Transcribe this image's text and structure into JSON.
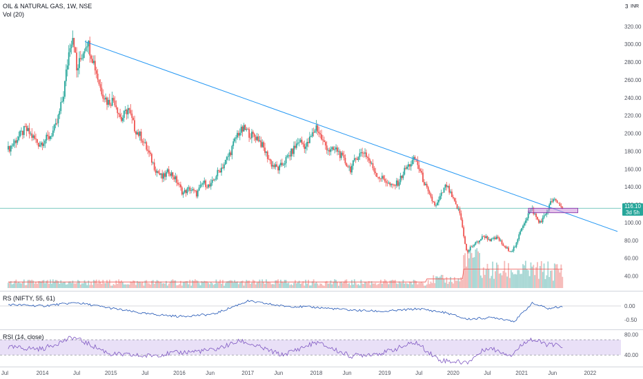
{
  "header": {
    "symbol": "OIL & NATURAL GAS, 1W, NSE",
    "vol_label": "Vol (20)",
    "currency_glyph": "3",
    "currency": "INR"
  },
  "price_badge": {
    "price": "116.10",
    "countdown": "3d 5h"
  },
  "colors": {
    "up": "#26a69a",
    "down": "#ef5350",
    "trendline": "#2196f3",
    "rs_line": "#1e53b4",
    "rsi_line": "#7e57c2",
    "rsi_band": "#e9e0f7",
    "box_fill": "#ce93d8",
    "box_stroke": "#7b1fa2",
    "price_line": "#26a69a",
    "vol_ma": "#ef5350"
  },
  "indicators": {
    "rs_label": "RS (NIFTY, 55, 61)",
    "rsi_label": "RSI (14, close)"
  },
  "chart_data": {
    "type": "candlestick",
    "title": "OIL & NATURAL GAS, 1W, NSE",
    "x_ticks": [
      "Jul",
      "2014",
      "Jul",
      "2015",
      "Jul",
      "2016",
      "Jun",
      "2017",
      "Jun",
      "2018",
      "Jun",
      "2019",
      "Jul",
      "2020",
      "Jul",
      "2021",
      "Jun",
      "2022"
    ],
    "price_axis": {
      "ticks": [
        "320.00",
        "300.00",
        "280.00",
        "260.00",
        "240.00",
        "220.00",
        "200.00",
        "180.00",
        "160.00",
        "140.00",
        "120.00",
        "100.00",
        "80.00",
        "60.00",
        "40.00"
      ],
      "ylim": [
        25,
        328
      ]
    },
    "last_price": 116.1,
    "price_path": [
      {
        "t": 2013.5,
        "p": 182
      },
      {
        "t": 2013.75,
        "p": 205
      },
      {
        "t": 2013.95,
        "p": 188
      },
      {
        "t": 2014.1,
        "p": 196
      },
      {
        "t": 2014.2,
        "p": 208
      },
      {
        "t": 2014.3,
        "p": 240
      },
      {
        "t": 2014.4,
        "p": 300
      },
      {
        "t": 2014.45,
        "p": 312
      },
      {
        "t": 2014.5,
        "p": 270
      },
      {
        "t": 2014.55,
        "p": 282
      },
      {
        "t": 2014.65,
        "p": 305
      },
      {
        "t": 2014.75,
        "p": 280
      },
      {
        "t": 2014.85,
        "p": 250
      },
      {
        "t": 2014.95,
        "p": 235
      },
      {
        "t": 2015.05,
        "p": 238
      },
      {
        "t": 2015.15,
        "p": 215
      },
      {
        "t": 2015.25,
        "p": 228
      },
      {
        "t": 2015.35,
        "p": 205
      },
      {
        "t": 2015.45,
        "p": 195
      },
      {
        "t": 2015.55,
        "p": 178
      },
      {
        "t": 2015.65,
        "p": 160
      },
      {
        "t": 2015.75,
        "p": 150
      },
      {
        "t": 2015.85,
        "p": 158
      },
      {
        "t": 2015.95,
        "p": 148
      },
      {
        "t": 2016.05,
        "p": 133
      },
      {
        "t": 2016.15,
        "p": 138
      },
      {
        "t": 2016.25,
        "p": 132
      },
      {
        "t": 2016.35,
        "p": 145
      },
      {
        "t": 2016.45,
        "p": 140
      },
      {
        "t": 2016.55,
        "p": 155
      },
      {
        "t": 2016.65,
        "p": 165
      },
      {
        "t": 2016.75,
        "p": 180
      },
      {
        "t": 2016.85,
        "p": 200
      },
      {
        "t": 2016.95,
        "p": 205
      },
      {
        "t": 2017.05,
        "p": 198
      },
      {
        "t": 2017.15,
        "p": 195
      },
      {
        "t": 2017.25,
        "p": 180
      },
      {
        "t": 2017.35,
        "p": 165
      },
      {
        "t": 2017.45,
        "p": 160
      },
      {
        "t": 2017.55,
        "p": 170
      },
      {
        "t": 2017.65,
        "p": 180
      },
      {
        "t": 2017.75,
        "p": 192
      },
      {
        "t": 2017.85,
        "p": 185
      },
      {
        "t": 2017.95,
        "p": 200
      },
      {
        "t": 2018.0,
        "p": 208
      },
      {
        "t": 2018.1,
        "p": 190
      },
      {
        "t": 2018.2,
        "p": 180
      },
      {
        "t": 2018.3,
        "p": 182
      },
      {
        "t": 2018.4,
        "p": 170
      },
      {
        "t": 2018.5,
        "p": 160
      },
      {
        "t": 2018.6,
        "p": 175
      },
      {
        "t": 2018.7,
        "p": 180
      },
      {
        "t": 2018.8,
        "p": 165
      },
      {
        "t": 2018.9,
        "p": 152
      },
      {
        "t": 2019.0,
        "p": 148
      },
      {
        "t": 2019.1,
        "p": 140
      },
      {
        "t": 2019.2,
        "p": 145
      },
      {
        "t": 2019.3,
        "p": 160
      },
      {
        "t": 2019.4,
        "p": 168
      },
      {
        "t": 2019.45,
        "p": 172
      },
      {
        "t": 2019.55,
        "p": 150
      },
      {
        "t": 2019.65,
        "p": 130
      },
      {
        "t": 2019.75,
        "p": 118
      },
      {
        "t": 2019.85,
        "p": 135
      },
      {
        "t": 2019.9,
        "p": 142
      },
      {
        "t": 2020.0,
        "p": 125
      },
      {
        "t": 2020.1,
        "p": 110
      },
      {
        "t": 2020.2,
        "p": 65
      },
      {
        "t": 2020.25,
        "p": 72
      },
      {
        "t": 2020.35,
        "p": 78
      },
      {
        "t": 2020.45,
        "p": 85
      },
      {
        "t": 2020.55,
        "p": 80
      },
      {
        "t": 2020.65,
        "p": 83
      },
      {
        "t": 2020.75,
        "p": 72
      },
      {
        "t": 2020.85,
        "p": 68
      },
      {
        "t": 2020.92,
        "p": 75
      },
      {
        "t": 2021.0,
        "p": 95
      },
      {
        "t": 2021.1,
        "p": 110
      },
      {
        "t": 2021.15,
        "p": 115
      },
      {
        "t": 2021.25,
        "p": 100
      },
      {
        "t": 2021.32,
        "p": 105
      },
      {
        "t": 2021.4,
        "p": 118
      },
      {
        "t": 2021.45,
        "p": 126
      },
      {
        "t": 2021.55,
        "p": 120
      },
      {
        "t": 2021.6,
        "p": 116.1
      }
    ],
    "trendline": {
      "from": {
        "t": 2014.62,
        "p": 303
      },
      "to": {
        "t": 2022.4,
        "p": 90
      }
    },
    "zone_box": {
      "t_from": 2021.1,
      "t_to": 2021.82,
      "p_from": 111,
      "p_to": 116
    },
    "volume_axis": {
      "ticks": []
    },
    "rs": {
      "ticks": [
        "0.00",
        "-0.50"
      ],
      "ylim": [
        -0.75,
        0.35
      ],
      "path": [
        {
          "t": 2013.5,
          "p": 0.05
        },
        {
          "t": 2014.0,
          "p": 0.0
        },
        {
          "t": 2014.5,
          "p": 0.12
        },
        {
          "t": 2015.0,
          "p": -0.08
        },
        {
          "t": 2015.5,
          "p": -0.28
        },
        {
          "t": 2016.0,
          "p": -0.38
        },
        {
          "t": 2016.5,
          "p": -0.3
        },
        {
          "t": 2017.0,
          "p": 0.18
        },
        {
          "t": 2017.5,
          "p": 0.0
        },
        {
          "t": 2018.0,
          "p": -0.05
        },
        {
          "t": 2018.5,
          "p": -0.15
        },
        {
          "t": 2019.0,
          "p": -0.2
        },
        {
          "t": 2019.5,
          "p": -0.1
        },
        {
          "t": 2019.9,
          "p": -0.25
        },
        {
          "t": 2020.2,
          "p": -0.48
        },
        {
          "t": 2020.6,
          "p": -0.42
        },
        {
          "t": 2020.9,
          "p": -0.55
        },
        {
          "t": 2021.15,
          "p": 0.1
        },
        {
          "t": 2021.4,
          "p": -0.1
        },
        {
          "t": 2021.6,
          "p": 0.0
        }
      ]
    },
    "rsi": {
      "ticks": [
        "80.00",
        "40.00"
      ],
      "ylim": [
        20,
        85
      ],
      "band": [
        40,
        70
      ],
      "path": [
        {
          "t": 2013.5,
          "p": 55
        },
        {
          "t": 2014.0,
          "p": 52
        },
        {
          "t": 2014.45,
          "p": 75
        },
        {
          "t": 2015.0,
          "p": 42
        },
        {
          "t": 2015.5,
          "p": 38
        },
        {
          "t": 2016.0,
          "p": 45
        },
        {
          "t": 2016.5,
          "p": 50
        },
        {
          "t": 2016.9,
          "p": 68
        },
        {
          "t": 2017.5,
          "p": 40
        },
        {
          "t": 2018.0,
          "p": 65
        },
        {
          "t": 2018.5,
          "p": 38
        },
        {
          "t": 2019.0,
          "p": 45
        },
        {
          "t": 2019.45,
          "p": 65
        },
        {
          "t": 2019.8,
          "p": 30
        },
        {
          "t": 2020.2,
          "p": 25
        },
        {
          "t": 2020.5,
          "p": 55
        },
        {
          "t": 2020.85,
          "p": 40
        },
        {
          "t": 2021.1,
          "p": 72
        },
        {
          "t": 2021.4,
          "p": 60
        },
        {
          "t": 2021.6,
          "p": 58
        }
      ]
    }
  }
}
